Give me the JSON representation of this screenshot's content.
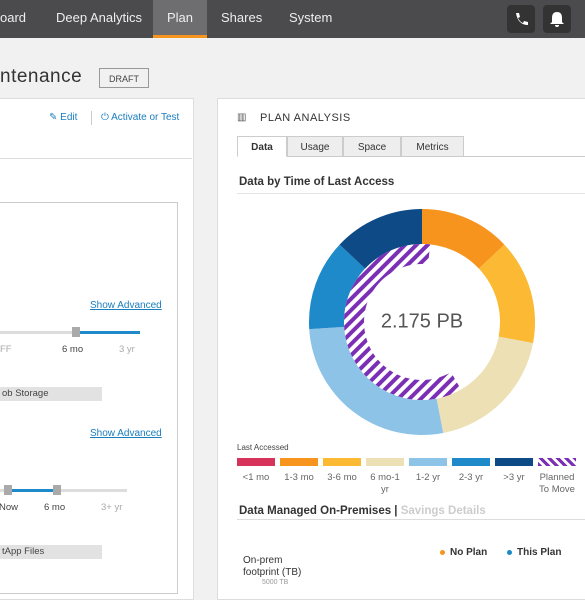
{
  "nav": {
    "items": [
      "oard",
      "Deep Analytics",
      "Plan",
      "Shares",
      "System"
    ],
    "active": 2
  },
  "page_title": "ntenance",
  "badge": "DRAFT",
  "left_panel": {
    "edit": "Edit",
    "activate": "Activate or Test",
    "show_advanced_1": "Show Advanced",
    "slider_1": [
      "FF",
      "6 mo",
      "3 yr"
    ],
    "storage_1": "ob Storage",
    "show_advanced_2": "Show Advanced",
    "slider_2": [
      "Now",
      "6 mo",
      "3+ yr"
    ],
    "storage_2": "tApp Files"
  },
  "analysis": {
    "title": "PLAN ANALYSIS",
    "tabs": [
      "Data",
      "Usage",
      "Space",
      "Metrics"
    ],
    "active_tab": 0,
    "chart_title": "Data by Time of Last Access",
    "total": "2.175 PB",
    "legend_title": "Last Accessed",
    "segments": [
      {
        "name": "<1 mo",
        "color": "#d6325a",
        "value": 0
      },
      {
        "name": "1-3 mo",
        "color": "#f7941d",
        "value": 13
      },
      {
        "name": "3-6 mo",
        "color": "#fbb934",
        "value": 15
      },
      {
        "name": "6 mo-1 yr",
        "color": "#ede0b4",
        "value": 19
      },
      {
        "name": "1-2 yr",
        "color": "#8cc3e6",
        "value": 27
      },
      {
        "name": "2-3 yr",
        "color": "#1f8ac9",
        "value": 13
      },
      {
        "name": ">3 yr",
        "color": "#0e4a86",
        "value": 13
      }
    ],
    "planned": {
      "name": "Planned To Move",
      "color": "#7b2fb5",
      "value": 60
    },
    "managed_title": "Data Managed On-Premises",
    "savings": "Savings Details",
    "series": [
      {
        "name": "No Plan",
        "color": "#f7941d"
      },
      {
        "name": "This Plan",
        "color": "#1a8ac6"
      }
    ],
    "row_label": "On-prem footprint (TB)",
    "row_value": "5000 TB"
  }
}
